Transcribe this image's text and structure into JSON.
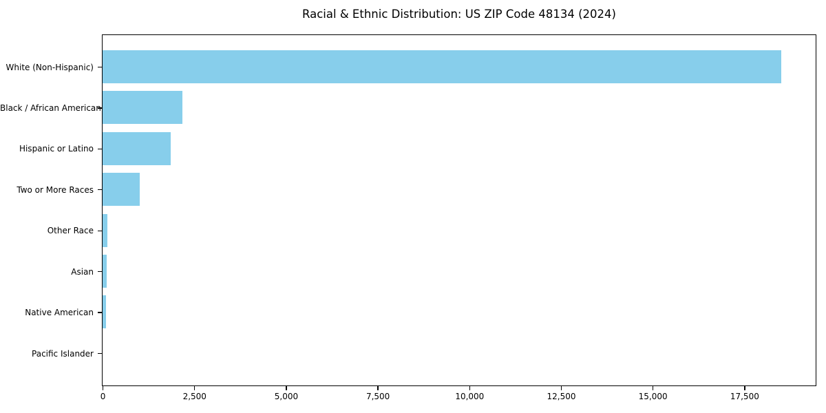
{
  "chart_data": {
    "type": "bar",
    "orientation": "horizontal",
    "title": "Racial & Ethnic Distribution: US ZIP Code 48134 (2024)",
    "categories": [
      "White (Non-Hispanic)",
      "Black / African American",
      "Hispanic or Latino",
      "Two or More Races",
      "Other Race",
      "Asian",
      "Native American",
      "Pacific Islander"
    ],
    "values": [
      18500,
      2180,
      1860,
      1020,
      140,
      115,
      85,
      0
    ],
    "xlabel": "",
    "ylabel": "",
    "xlim": [
      0,
      19425
    ],
    "x_ticks": [
      0,
      2500,
      5000,
      7500,
      10000,
      12500,
      15000,
      17500
    ],
    "x_tick_labels": [
      "0",
      "2,500",
      "5,000",
      "7,500",
      "10,000",
      "12,500",
      "15,000",
      "17,500"
    ],
    "bar_color": "#87CEEB",
    "spine_color": "#000000",
    "background_color": "#ffffff",
    "grid": false,
    "legend": null
  }
}
